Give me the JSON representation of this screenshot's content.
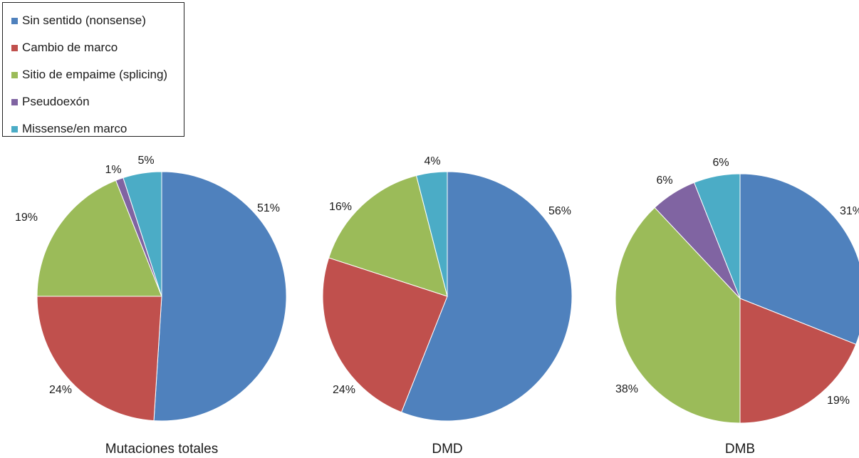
{
  "legend": {
    "items": [
      {
        "label": "Sin sentido (nonsense)",
        "color": "#4F81BD"
      },
      {
        "label": "Cambio de marco",
        "color": "#C0504D"
      },
      {
        "label": "Sitio de empaime (splicing)",
        "color": "#9BBB59"
      },
      {
        "label": "Pseudoexón",
        "color": "#8064A2"
      },
      {
        "label": "Missense/en marco",
        "color": "#4BACC6"
      }
    ]
  },
  "chart_data": [
    {
      "type": "pie",
      "title": "Mutaciones totales",
      "categories": [
        "Sin sentido (nonsense)",
        "Cambio de marco",
        "Sitio de empaime (splicing)",
        "Pseudoexón",
        "Missense/en marco"
      ],
      "values": [
        51,
        24,
        19,
        1,
        5
      ],
      "labels": [
        "51%",
        "24%",
        "19%",
        "1%",
        "5%"
      ]
    },
    {
      "type": "pie",
      "title": "DMD",
      "categories": [
        "Sin sentido (nonsense)",
        "Cambio de marco",
        "Sitio de empaime (splicing)",
        "Missense/en marco"
      ],
      "values": [
        56,
        24,
        16,
        4
      ],
      "labels": [
        "56%",
        "24%",
        "16%",
        "4%"
      ]
    },
    {
      "type": "pie",
      "title": "DMB",
      "categories": [
        "Sin sentido (nonsense)",
        "Cambio de marco",
        "Sitio de empaime (splicing)",
        "Pseudoexón",
        "Missense/en marco"
      ],
      "values": [
        31,
        19,
        38,
        6,
        6
      ],
      "labels": [
        "31%",
        "19%",
        "38%",
        "6%",
        "6%"
      ]
    }
  ]
}
